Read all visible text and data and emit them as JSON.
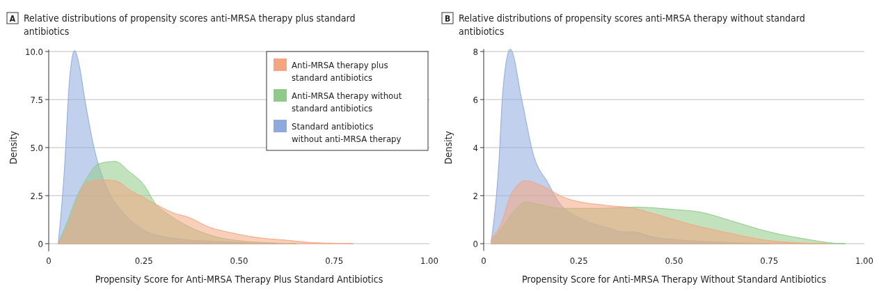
{
  "chart_data": [
    {
      "type": "area",
      "title": "Relative distributions of propensity scores anti-MRSA therapy plus standard antibiotics",
      "annotations": [
        "A"
      ],
      "xlabel": "Propensity Score for Anti-MRSA Therapy Plus Standard Antibiotics",
      "ylabel": "Density",
      "xlim": [
        0,
        1
      ],
      "xticks": [
        0,
        {
          "value": 0.25,
          "label": "0.25"
        },
        {
          "value": 0.5,
          "label": "0.50"
        },
        {
          "value": 0.75,
          "label": "0.75"
        },
        {
          "value": 1,
          "label": "1.00"
        }
      ],
      "ylim": [
        -0.4,
        10.1
      ],
      "yticks": [
        0,
        2.5,
        {
          "value": 5,
          "label": "5.0"
        },
        7.5,
        {
          "value": 10,
          "label": "10.0"
        }
      ],
      "grid": "y",
      "legend": "top right",
      "series": [
        {
          "name": "Anti-MRSA therapy plus standard antibiotics",
          "color": "#f4a582",
          "x": [
            0.025,
            0.05,
            0.075,
            0.1,
            0.143,
            0.177,
            0.217,
            0.25,
            0.283,
            0.33,
            0.366,
            0.42,
            0.486,
            0.572,
            0.62,
            0.695,
            0.75,
            0.8
          ],
          "values": [
            0,
            0.93,
            2.3,
            3.19,
            3.32,
            3.26,
            2.74,
            2.4,
            2.03,
            1.58,
            1.38,
            0.87,
            0.54,
            0.26,
            0.19,
            0.05,
            0.02,
            0
          ]
        },
        {
          "name": "Anti-MRSA therapy without standard antibiotics",
          "color": "#8fca88",
          "x": [
            0.025,
            0.05,
            0.075,
            0.1,
            0.13,
            0.175,
            0.21,
            0.25,
            0.28,
            0.32,
            0.37,
            0.43,
            0.5,
            0.6,
            0.65
          ],
          "values": [
            0,
            1.2,
            2.5,
            3.4,
            4.15,
            4.28,
            3.77,
            3.06,
            2.09,
            1.45,
            0.87,
            0.41,
            0.15,
            0.03,
            0
          ]
        },
        {
          "name": "Standard antibiotics without anti-MRSA therapy",
          "color": "#8ea9dc",
          "x": [
            0.025,
            0.04,
            0.055,
            0.068,
            0.08,
            0.095,
            0.119,
            0.163,
            0.19,
            0.25,
            0.32,
            0.45,
            0.6
          ],
          "values": [
            0,
            3.5,
            8.6,
            10.05,
            9.3,
            7.5,
            5.0,
            2.5,
            1.75,
            0.7,
            0.3,
            0.1,
            0
          ]
        }
      ]
    },
    {
      "type": "area",
      "title": "Relative distributions of propensity scores anti-MRSA therapy without standard antibiotics",
      "annotations": [
        "B"
      ],
      "xlabel": "Propensity Score for Anti-MRSA Therapy Without Standard Antibiotics",
      "ylabel": "Density",
      "xlim": [
        0,
        1
      ],
      "xticks": [
        0,
        {
          "value": 0.25,
          "label": "0.25"
        },
        {
          "value": 0.5,
          "label": "0.50"
        },
        {
          "value": 0.75,
          "label": "0.75"
        },
        {
          "value": 1,
          "label": "1.00"
        }
      ],
      "ylim": [
        -0.3,
        8.1
      ],
      "yticks": [
        0,
        2,
        4,
        6,
        8
      ],
      "grid": "y",
      "series": [
        {
          "color": "#f4a582",
          "x": [
            0.02,
            0.046,
            0.073,
            0.11,
            0.16,
            0.215,
            0.323,
            0.39,
            0.444,
            0.545,
            0.648,
            0.734,
            0.816,
            0.9
          ],
          "values": [
            0.2,
            0.85,
            2.09,
            2.62,
            2.35,
            1.9,
            1.59,
            1.49,
            1.26,
            0.8,
            0.43,
            0.16,
            0.04,
            0
          ]
        },
        {
          "color": "#8fca88",
          "x": [
            0.02,
            0.05,
            0.08,
            0.11,
            0.15,
            0.2,
            0.3,
            0.4,
            0.5,
            0.57,
            0.65,
            0.75,
            0.85,
            0.92,
            0.95
          ],
          "values": [
            0.1,
            0.7,
            1.36,
            1.73,
            1.62,
            1.47,
            1.47,
            1.52,
            1.42,
            1.31,
            0.95,
            0.49,
            0.18,
            0.02,
            0
          ]
        },
        {
          "color": "#8ea9dc",
          "x": [
            0.02,
            0.04,
            0.05,
            0.07,
            0.1,
            0.13,
            0.17,
            0.195,
            0.262,
            0.33,
            0.363,
            0.39,
            0.444,
            0.545,
            0.65,
            0.75
          ],
          "values": [
            0.1,
            3.4,
            6.3,
            8.1,
            6.0,
            3.74,
            2.5,
            1.78,
            1.0,
            0.64,
            0.49,
            0.49,
            0.28,
            0.12,
            0.04,
            0
          ]
        }
      ]
    }
  ]
}
